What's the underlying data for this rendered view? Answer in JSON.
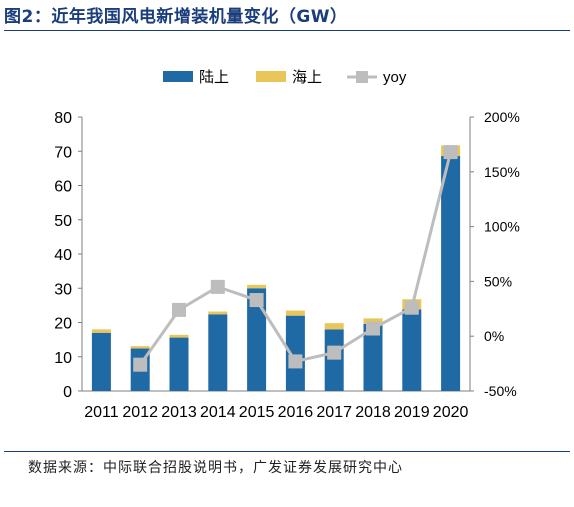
{
  "header": {
    "title": "图2：近年我国风电新增装机量变化（GW）"
  },
  "footer": {
    "source": "数据来源：中际联合招股说明书，广发证券发展研究中心"
  },
  "colors": {
    "onshore": "#1f6aa5",
    "offshore": "#e8c65a",
    "yoy": "#bdbdbd",
    "rule": "#1a3d7c"
  },
  "chart_data": {
    "type": "bar",
    "stacked": true,
    "categories": [
      "2011",
      "2012",
      "2013",
      "2014",
      "2015",
      "2016",
      "2017",
      "2018",
      "2019",
      "2020"
    ],
    "series": [
      {
        "name": "陆上",
        "values": [
          17.0,
          12.4,
          15.6,
          22.4,
          30.0,
          22.0,
          18.0,
          19.6,
          23.8,
          68.6
        ]
      },
      {
        "name": "海上",
        "values": [
          1.0,
          0.7,
          0.8,
          0.8,
          1.0,
          1.5,
          1.8,
          1.6,
          3.0,
          3.1
        ]
      },
      {
        "name": "yoy",
        "axis": "right",
        "type": "line",
        "values": [
          null,
          -26,
          24,
          45,
          33,
          -23,
          -15,
          7,
          26,
          168
        ]
      }
    ],
    "ylim": [
      0,
      80
    ],
    "y_ticks": [
      "0",
      "10",
      "20",
      "30",
      "40",
      "50",
      "60",
      "70",
      "80"
    ],
    "y2lim": [
      -50,
      200
    ],
    "y2_ticks": [
      "-50%",
      "0%",
      "50%",
      "100%",
      "150%",
      "200%"
    ],
    "legend": [
      "陆上",
      "海上",
      "yoy"
    ],
    "legend_position": "top",
    "grid": false
  }
}
